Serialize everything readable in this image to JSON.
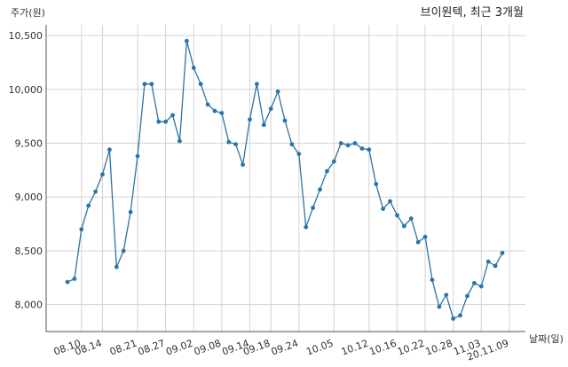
{
  "chart_data": {
    "type": "line",
    "title": "브이원텍, 최근 3개월",
    "ylabel": "주가(원)",
    "xlabel": "날짜(일)",
    "ylim": [
      7750,
      10600
    ],
    "y_ticks": [
      8000,
      8500,
      9000,
      9500,
      10000,
      10500
    ],
    "y_tick_labels": [
      "8,000",
      "8,500",
      "9,000",
      "9,500",
      "10,000",
      "10,500"
    ],
    "x_tick_labels": [
      "08.10",
      "08.14",
      "08.21",
      "08.27",
      "09.02",
      "09.08",
      "09.14",
      "09.18",
      "09.24",
      "10.05",
      "10.12",
      "10.16",
      "10.22",
      "10.28",
      "11.03",
      "20.11.09"
    ],
    "x_tick_index": [
      2,
      5,
      10,
      14,
      18,
      22,
      26,
      29,
      33,
      38,
      43,
      47,
      51,
      55,
      59,
      63
    ],
    "grid": true,
    "series": [
      {
        "values": [
          8210,
          8240,
          8700,
          8920,
          9050,
          9210,
          9440,
          8350,
          8500,
          8860,
          9380,
          10050,
          10050,
          9700,
          9700,
          9760,
          9520,
          10450,
          10200,
          10050,
          9860,
          9800,
          9780,
          9510,
          9490,
          9300,
          9720,
          10050,
          9670,
          9820,
          9980,
          9710,
          9490,
          9400,
          8720,
          8900,
          9070,
          9240,
          9330,
          9500,
          9480,
          9500,
          9450,
          9440,
          9120,
          8890,
          8960,
          8830,
          8730,
          8800,
          8580,
          8630,
          8230,
          7980,
          8090,
          7870,
          7900,
          8080,
          8200,
          8170,
          8400,
          8360,
          8480
        ]
      }
    ]
  }
}
